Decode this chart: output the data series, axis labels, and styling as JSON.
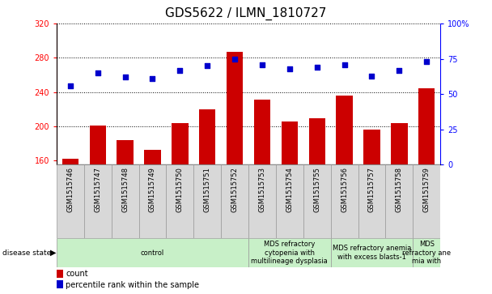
{
  "title": "GDS5622 / ILMN_1810727",
  "samples": [
    "GSM1515746",
    "GSM1515747",
    "GSM1515748",
    "GSM1515749",
    "GSM1515750",
    "GSM1515751",
    "GSM1515752",
    "GSM1515753",
    "GSM1515754",
    "GSM1515755",
    "GSM1515756",
    "GSM1515757",
    "GSM1515758",
    "GSM1515759"
  ],
  "counts": [
    162,
    201,
    184,
    172,
    204,
    220,
    287,
    231,
    205,
    209,
    236,
    196,
    204,
    244
  ],
  "percentile_ranks": [
    56,
    65,
    62,
    61,
    67,
    70,
    75,
    71,
    68,
    69,
    71,
    63,
    67,
    73
  ],
  "ylim_left": [
    155,
    320
  ],
  "ylim_right": [
    0,
    100
  ],
  "yticks_left": [
    160,
    200,
    240,
    280,
    320
  ],
  "yticks_right": [
    0,
    25,
    50,
    75,
    100
  ],
  "bar_color": "#cc0000",
  "dot_color": "#0000cc",
  "background_color": "#ffffff",
  "disease_groups": [
    {
      "label": "control",
      "start": 0,
      "end": 7
    },
    {
      "label": "MDS refractory\ncytopenia with\nmultilineage dysplasia",
      "start": 7,
      "end": 10
    },
    {
      "label": "MDS refractory anemia\nwith excess blasts-1",
      "start": 10,
      "end": 13
    },
    {
      "label": "MDS\nrefractory ane\nmia with",
      "start": 13,
      "end": 14
    }
  ],
  "disease_state_label": "disease state",
  "legend_count": "count",
  "legend_percentile": "percentile rank within the sample",
  "title_fontsize": 11,
  "tick_fontsize": 7,
  "sample_fontsize": 6,
  "disease_fontsize": 6,
  "legend_fontsize": 7
}
